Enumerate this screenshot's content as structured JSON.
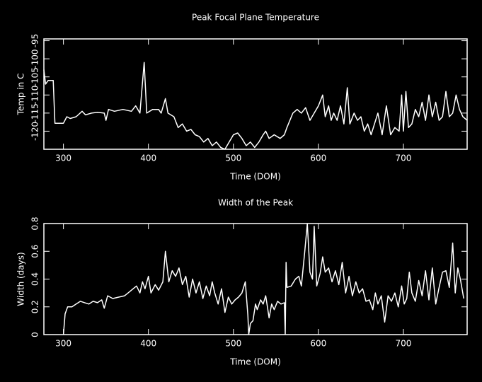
{
  "chart_data": [
    {
      "type": "line",
      "title": "Peak Focal Plane Temperature",
      "xlabel": "Time (DOM)",
      "ylabel": "Temp in C",
      "color": "#ffffff",
      "xlim": [
        277,
        775
      ],
      "xticks": [
        300,
        400,
        500,
        600,
        700
      ],
      "ylim": [
        -125,
        -94.5
      ],
      "yticks": [
        -120,
        -115,
        -110,
        -105,
        -100,
        -95
      ],
      "x": [
        277,
        279,
        282,
        288,
        290,
        300,
        304,
        308,
        315,
        322,
        326,
        333,
        340,
        348,
        350,
        353,
        360,
        370,
        380,
        385,
        390,
        395,
        398,
        405,
        412,
        415,
        420,
        423,
        430,
        435,
        440,
        445,
        450,
        455,
        460,
        465,
        470,
        475,
        480,
        485,
        490,
        495,
        500,
        505,
        510,
        515,
        520,
        525,
        530,
        535,
        538,
        542,
        548,
        555,
        560,
        563,
        570,
        575,
        580,
        585,
        590,
        595,
        600,
        605,
        608,
        612,
        615,
        618,
        622,
        626,
        630,
        634,
        637,
        642,
        646,
        650,
        654,
        658,
        662,
        666,
        670,
        675,
        680,
        685,
        690,
        695,
        698,
        700,
        703,
        706,
        710,
        714,
        718,
        722,
        726,
        730,
        734,
        738,
        742,
        746,
        750,
        754,
        758,
        762,
        766,
        770,
        775
      ],
      "values": [
        -103,
        -107,
        -106,
        -106,
        -117.8,
        -117.8,
        -116,
        -116.5,
        -116,
        -114.5,
        -115.5,
        -115,
        -114.8,
        -115,
        -117,
        -114,
        -114.5,
        -114,
        -114.5,
        -113,
        -115,
        -101,
        -115,
        -114,
        -114,
        -115,
        -111,
        -115,
        -116,
        -119,
        -118,
        -120,
        -119.5,
        -121,
        -121.5,
        -123,
        -122,
        -124,
        -123,
        -124.5,
        -125,
        -123,
        -121,
        -120.5,
        -122,
        -124,
        -123,
        -124.5,
        -123,
        -121,
        -120,
        -122,
        -121,
        -122,
        -121,
        -119,
        -115,
        -114,
        -115,
        -113.5,
        -117,
        -115,
        -113,
        -110,
        -116,
        -113,
        -117,
        -115,
        -117,
        -113,
        -118,
        -108,
        -118,
        -115,
        -117,
        -116,
        -120,
        -118,
        -121,
        -118,
        -115,
        -121,
        -113,
        -121,
        -119,
        -120,
        -110,
        -120,
        -109,
        -119,
        -118,
        -114,
        -116,
        -112,
        -117,
        -110,
        -116,
        -112,
        -117,
        -116,
        -109,
        -116,
        -115,
        -110,
        -114,
        -116,
        -117
      ]
    },
    {
      "type": "line",
      "title": "Width of the Peak",
      "xlabel": "Time (DOM)",
      "ylabel": "Width (days)",
      "color": "#ffffff",
      "xlim": [
        277,
        775
      ],
      "xticks": [
        300,
        400,
        500,
        600,
        700
      ],
      "ylim": [
        0,
        0.8
      ],
      "yticks": [
        0,
        0.2,
        0.4,
        0.6,
        0.8
      ],
      "x": [
        300,
        302,
        305,
        310,
        315,
        320,
        325,
        330,
        335,
        340,
        345,
        348,
        352,
        358,
        365,
        372,
        378,
        382,
        386,
        390,
        393,
        396,
        400,
        403,
        408,
        412,
        417,
        420,
        424,
        428,
        432,
        436,
        440,
        444,
        448,
        452,
        456,
        460,
        464,
        468,
        472,
        475,
        478,
        482,
        486,
        490,
        494,
        498,
        502,
        506,
        510,
        514,
        517,
        518,
        520,
        523,
        526,
        528,
        532,
        535,
        538,
        542,
        545,
        548,
        552,
        556,
        560,
        561,
        562,
        563,
        568,
        573,
        577,
        580,
        584,
        587,
        590,
        593,
        595,
        598,
        602,
        605,
        608,
        612,
        616,
        620,
        624,
        628,
        632,
        636,
        640,
        644,
        648,
        652,
        656,
        660,
        664,
        667,
        670,
        674,
        678,
        682,
        686,
        690,
        694,
        698,
        701,
        704,
        707,
        710,
        714,
        718,
        722,
        726,
        730,
        734,
        738,
        742,
        746,
        750,
        754,
        758,
        761,
        764,
        767,
        771
      ],
      "values": [
        0,
        0.15,
        0.2,
        0.2,
        0.22,
        0.24,
        0.23,
        0.22,
        0.24,
        0.23,
        0.25,
        0.19,
        0.28,
        0.26,
        0.27,
        0.28,
        0.31,
        0.33,
        0.35,
        0.3,
        0.38,
        0.33,
        0.42,
        0.3,
        0.36,
        0.32,
        0.38,
        0.6,
        0.38,
        0.46,
        0.42,
        0.48,
        0.36,
        0.42,
        0.27,
        0.4,
        0.3,
        0.38,
        0.26,
        0.35,
        0.28,
        0.38,
        0.3,
        0.22,
        0.33,
        0.16,
        0.27,
        0.22,
        0.25,
        0.27,
        0.3,
        0.38,
        0.14,
        0,
        0.08,
        0.1,
        0.22,
        0.18,
        0.25,
        0.22,
        0.28,
        0.12,
        0.22,
        0.18,
        0.24,
        0.22,
        0.23,
        0,
        0.52,
        0.34,
        0.35,
        0.4,
        0.42,
        0.35,
        0.6,
        0.8,
        0.45,
        0.4,
        0.78,
        0.35,
        0.44,
        0.56,
        0.45,
        0.48,
        0.38,
        0.46,
        0.36,
        0.52,
        0.3,
        0.42,
        0.28,
        0.38,
        0.3,
        0.33,
        0.24,
        0.25,
        0.18,
        0.3,
        0.22,
        0.28,
        0.09,
        0.28,
        0.24,
        0.3,
        0.2,
        0.35,
        0.22,
        0.26,
        0.45,
        0.3,
        0.24,
        0.39,
        0.28,
        0.46,
        0.25,
        0.48,
        0.22,
        0.34,
        0.45,
        0.46,
        0.34,
        0.66,
        0.3,
        0.48,
        0.4,
        0.26
      ]
    }
  ]
}
